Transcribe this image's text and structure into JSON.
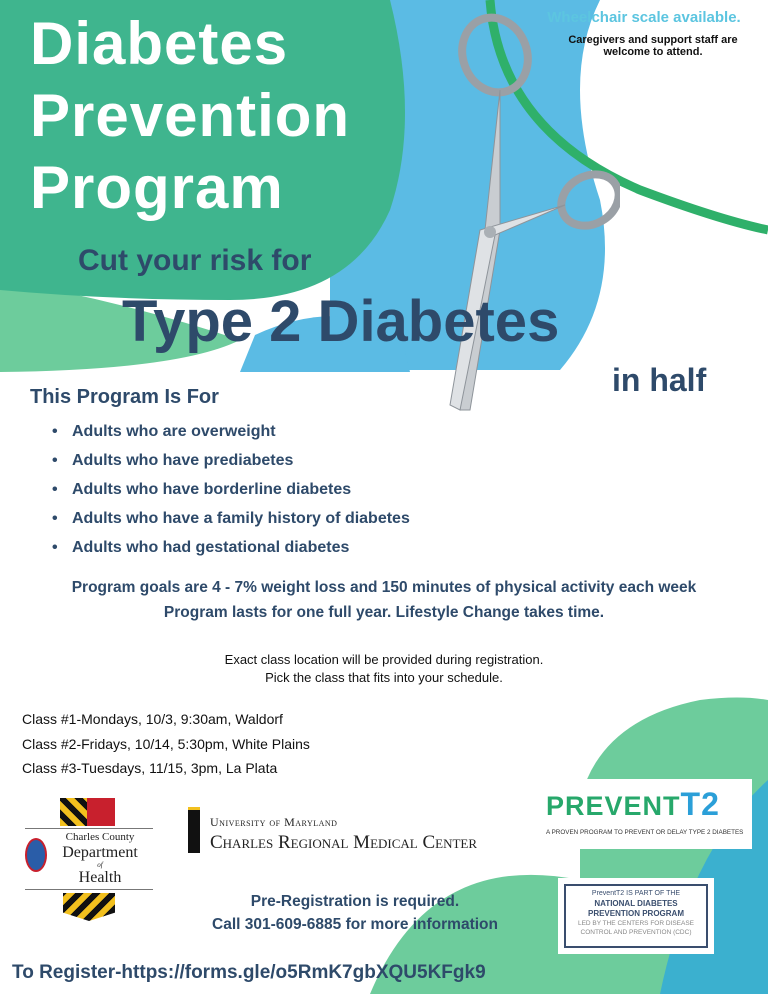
{
  "header": {
    "title_lines": [
      "Diabetes",
      "Prevention",
      "Program"
    ],
    "note_scale": "Wheelchair scale available.",
    "note_caregivers": "Caregivers and support staff are welcome to attend."
  },
  "headline": {
    "line1": "Cut your risk for",
    "line2": "Type 2 Diabetes",
    "line3": "in half"
  },
  "audience": {
    "heading": "This Program Is For",
    "items": [
      "Adults who are overweight",
      "Adults who have prediabetes",
      "Adults who have borderline diabetes",
      "Adults who have a family history of diabetes",
      "Adults who had gestational diabetes"
    ]
  },
  "goals": [
    "Program goals are 4 - 7% weight loss  and 150 minutes of physical activity each week",
    "Program lasts for one full year.  Lifestyle Change takes time."
  ],
  "location_note": [
    "Exact class location will be provided during registration.",
    "Pick the class that fits into your schedule."
  ],
  "classes": [
    "Class #1-Mondays, 10/3, 9:30am, Waldorf",
    "Class #2-Fridays, 10/14, 5:30pm, White Plains",
    "Class #3-Tuesdays, 11/15, 3pm, La Plata"
  ],
  "logos": {
    "health_dept": [
      "Charles County",
      "Department",
      "of",
      "Health"
    ],
    "umd_line1": "University of Maryland",
    "umd_line2": "Charles Regional Medical Center",
    "prevent_main": "PREVENT",
    "prevent_t2": "T2",
    "prevent_tagline": "A PROVEN PROGRAM TO PREVENT OR DELAY TYPE 2 DIABETES",
    "ndpp": [
      "PreventT2 IS PART OF THE",
      "NATIONAL DIABETES",
      "PREVENTION PROGRAM",
      "LED BY THE CENTERS FOR DISEASE",
      "CONTROL AND PREVENTION (CDC)"
    ]
  },
  "footer": {
    "prereg": "Pre-Registration is required.",
    "call": "Call 301-609-6885 for more information",
    "register": "To Register-https://forms.gle/o5RmK7gbXQU5KFgk9"
  },
  "colors": {
    "teal": "#3fb58e",
    "blue": "#5bbbe4",
    "light_green": "#6dcc9c",
    "navy": "#2e4a6a",
    "cyan_text": "#5cc5e0"
  }
}
